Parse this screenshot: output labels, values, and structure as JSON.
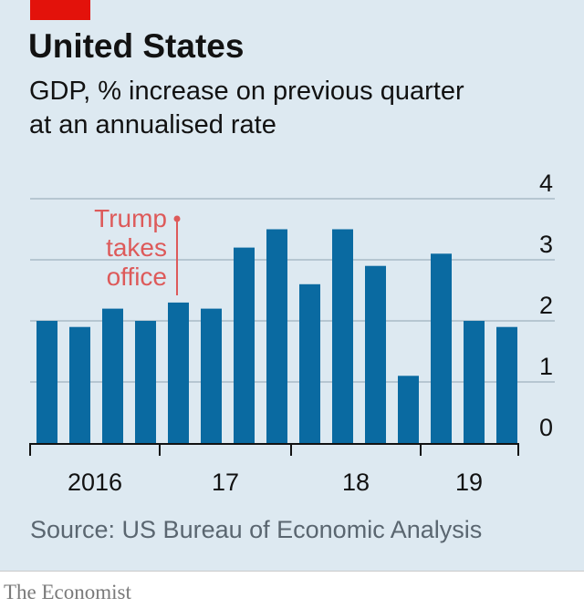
{
  "title": "United States",
  "subtitle_lines": [
    "GDP, % increase on previous quarter",
    "at an annualised rate"
  ],
  "source": "Source: US Bureau of Economic Analysis",
  "brand": "The Economist",
  "colors": {
    "bar": "#0a6aa1",
    "annotation": "#dd5a5a",
    "accent": "#e3120b",
    "panel": "#dde9f1"
  },
  "chart_data": {
    "type": "bar",
    "categories": [
      "2016 Q1",
      "2016 Q2",
      "2016 Q3",
      "2016 Q4",
      "2017 Q1",
      "2017 Q2",
      "2017 Q3",
      "2017 Q4",
      "2018 Q1",
      "2018 Q2",
      "2018 Q3",
      "2018 Q4",
      "2019 Q1",
      "2019 Q2",
      "2019 Q3"
    ],
    "values": [
      2.0,
      1.9,
      2.2,
      2.0,
      2.3,
      2.2,
      3.2,
      3.5,
      2.6,
      3.5,
      2.9,
      1.1,
      3.1,
      2.0,
      1.9
    ],
    "ylim": [
      0,
      4
    ],
    "yticks": [
      "0",
      "1",
      "2",
      "3",
      "4"
    ],
    "xtick_labels": [
      "2016",
      "17",
      "18",
      "19"
    ],
    "grid": true,
    "y_axis_side": "right",
    "annotation": {
      "lines": [
        "Trump",
        "takes",
        "office"
      ],
      "at_category": "2017 Q1"
    }
  }
}
